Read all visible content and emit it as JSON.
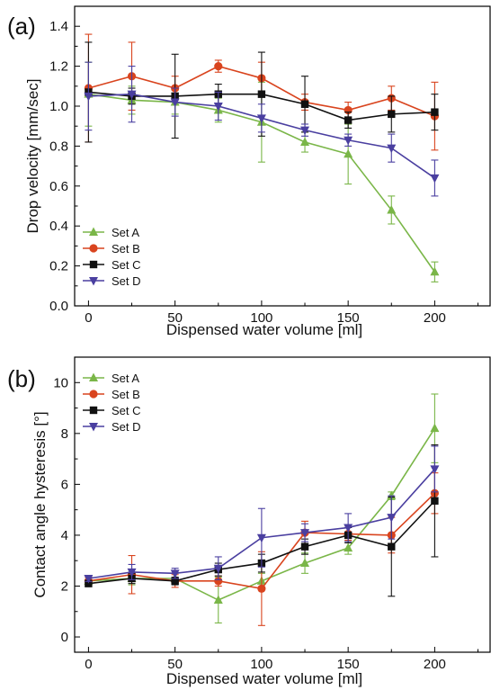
{
  "chart_data": [
    {
      "type": "line",
      "panel_label": "(a)",
      "xlabel": "Dispensed water volume [ml]",
      "ylabel": "Drop velocity [mm/sec]",
      "xlim": [
        -8,
        232
      ],
      "ylim": [
        0.0,
        1.5
      ],
      "xticks": [
        0,
        50,
        100,
        150,
        200
      ],
      "xtick_labels": [
        "0",
        "50",
        "100",
        "150",
        "200"
      ],
      "yticks": [
        0.0,
        0.2,
        0.4,
        0.6,
        0.8,
        1.0,
        1.2,
        1.4
      ],
      "ytick_labels": [
        "0.0",
        "0.2",
        "0.4",
        "0.6",
        "0.8",
        "1.0",
        "1.2",
        "1.4"
      ],
      "legend_position": "bottom-left",
      "x": [
        0,
        25,
        50,
        75,
        100,
        125,
        150,
        175,
        200
      ],
      "series": [
        {
          "name": "Set A",
          "color": "#7ab648",
          "marker": "triangle-up",
          "values": [
            1.06,
            1.03,
            1.02,
            0.98,
            0.92,
            0.82,
            0.76,
            0.48,
            0.17
          ],
          "errors": [
            0.16,
            0.07,
            0.06,
            0.06,
            0.2,
            0.05,
            0.15,
            0.07,
            0.05
          ]
        },
        {
          "name": "Set B",
          "color": "#d9441e",
          "marker": "circle",
          "values": [
            1.09,
            1.15,
            1.09,
            1.2,
            1.14,
            1.02,
            0.98,
            1.04,
            0.95
          ],
          "errors": [
            0.27,
            0.17,
            0.06,
            0.03,
            0.08,
            0.04,
            0.04,
            0.06,
            0.17
          ]
        },
        {
          "name": "Set C",
          "color": "#111111",
          "marker": "square",
          "values": [
            1.07,
            1.05,
            1.05,
            1.06,
            1.06,
            1.01,
            0.93,
            0.96,
            0.97
          ],
          "errors": [
            0.25,
            0.04,
            0.21,
            0.05,
            0.21,
            0.14,
            0.04,
            0.09,
            0.09
          ]
        },
        {
          "name": "Set D",
          "color": "#4a3fa0",
          "marker": "triangle-down",
          "values": [
            1.05,
            1.06,
            1.02,
            1.0,
            0.94,
            0.88,
            0.83,
            0.79,
            0.64
          ],
          "errors": [
            0.17,
            0.14,
            0.07,
            0.07,
            0.07,
            0.03,
            0.03,
            0.07,
            0.09
          ]
        }
      ]
    },
    {
      "type": "line",
      "panel_label": "(b)",
      "xlabel": "Dispensed water volume [ml]",
      "ylabel": "Contact angle hysteresis [°]",
      "xlim": [
        -8,
        232
      ],
      "ylim": [
        -0.6,
        11.0
      ],
      "xticks": [
        0,
        50,
        100,
        150,
        200
      ],
      "xtick_labels": [
        "0",
        "50",
        "100",
        "150",
        "200"
      ],
      "yticks": [
        0,
        2,
        4,
        6,
        8,
        10
      ],
      "ytick_labels": [
        "0",
        "2",
        "4",
        "6",
        "8",
        "10"
      ],
      "legend_position": "top-left",
      "x": [
        0,
        25,
        50,
        75,
        100,
        125,
        150,
        175,
        200
      ],
      "series": [
        {
          "name": "Set A",
          "color": "#7ab648",
          "marker": "triangle-up",
          "values": [
            2.2,
            2.3,
            2.3,
            1.45,
            2.2,
            2.9,
            3.5,
            5.55,
            8.2
          ],
          "errors": [
            0.15,
            0.25,
            0.2,
            0.9,
            0.3,
            0.4,
            0.25,
            0.15,
            1.35
          ]
        },
        {
          "name": "Set B",
          "color": "#d9441e",
          "marker": "circle",
          "values": [
            2.2,
            2.45,
            2.2,
            2.2,
            1.9,
            4.1,
            4.05,
            4.0,
            5.65
          ],
          "errors": [
            0.15,
            0.75,
            0.25,
            0.2,
            1.45,
            0.45,
            0.25,
            0.7,
            0.8
          ]
        },
        {
          "name": "Set C",
          "color": "#111111",
          "marker": "square",
          "values": [
            2.1,
            2.3,
            2.2,
            2.65,
            2.9,
            3.55,
            4.0,
            3.55,
            5.35
          ],
          "errors": [
            0.1,
            0.2,
            0.15,
            0.25,
            0.35,
            0.3,
            0.3,
            1.95,
            2.2
          ]
        },
        {
          "name": "Set D",
          "color": "#4a3fa0",
          "marker": "triangle-down",
          "values": [
            2.3,
            2.55,
            2.5,
            2.7,
            3.9,
            4.1,
            4.3,
            4.7,
            6.6
          ],
          "errors": [
            0.12,
            0.3,
            0.2,
            0.45,
            1.15,
            0.35,
            0.55,
            0.85,
            0.9
          ]
        }
      ]
    }
  ]
}
